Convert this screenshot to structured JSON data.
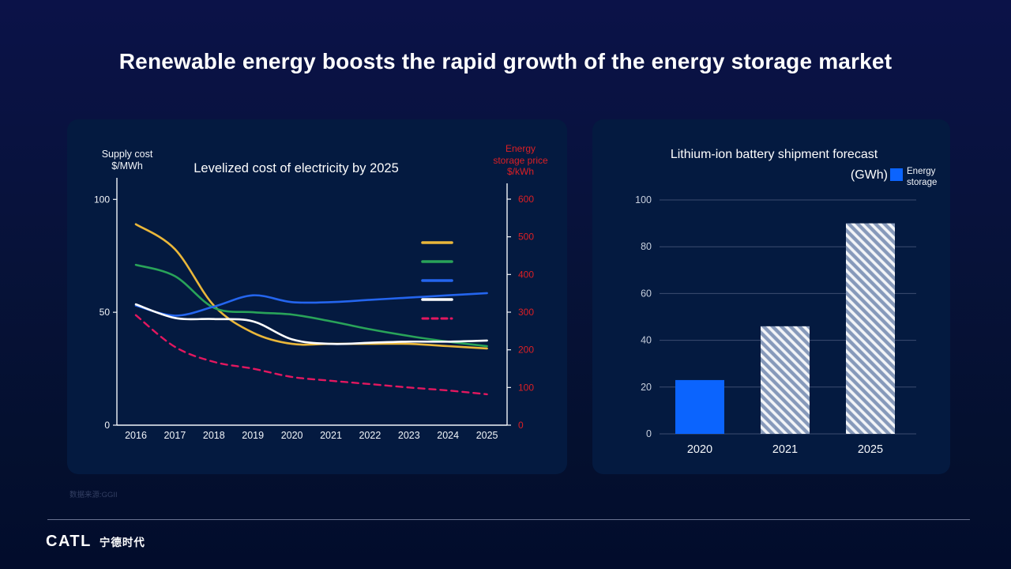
{
  "slide": {
    "title": "Renewable energy boosts the rapid growth of the energy storage market",
    "source_note": "数据来源:GGII",
    "logo_text": "CATL",
    "logo_cn": "宁德时代"
  },
  "chart_data": [
    {
      "type": "line",
      "title": "Levelized  cost of electricity by 2025",
      "x": [
        2016,
        2017,
        2018,
        2019,
        2020,
        2021,
        2022,
        2023,
        2024,
        2025
      ],
      "left_axis": {
        "label_line1": "Supply cost",
        "label_line2": "$/MWh",
        "ticks": [
          0,
          50,
          100
        ],
        "range": [
          0,
          100
        ],
        "color": "#f2f5f9"
      },
      "right_axis": {
        "label_line1": "Energy",
        "label_line2": "storage price",
        "label_line3": "$/kWh",
        "ticks": [
          0,
          100,
          200,
          300,
          400,
          500,
          600
        ],
        "range": [
          0,
          600
        ],
        "color": "#dd1f24"
      },
      "legend_position": "top-right-swatches-only",
      "grid": false,
      "series": [
        {
          "name": "yellow-line",
          "axis": "left",
          "color": "#eab73a",
          "dashed": false,
          "values": [
            89,
            78,
            53,
            41,
            36,
            36,
            36,
            36,
            35,
            34
          ]
        },
        {
          "name": "green-line",
          "axis": "left",
          "color": "#29a359",
          "dashed": false,
          "values": [
            71,
            66,
            52,
            50,
            49,
            46,
            42.5,
            39.5,
            37,
            35
          ]
        },
        {
          "name": "blue-line",
          "axis": "left",
          "color": "#2465ee",
          "dashed": false,
          "values": [
            53,
            48.5,
            52.5,
            57.5,
            54.5,
            54.5,
            55.5,
            56.5,
            57.5,
            58.5
          ]
        },
        {
          "name": "white-line",
          "axis": "left",
          "color": "#ffffff",
          "dashed": false,
          "values": [
            53.5,
            47.5,
            47,
            46,
            38,
            36,
            36.5,
            37,
            37,
            37.5
          ]
        },
        {
          "name": "red-dashed-line",
          "axis": "right",
          "color": "#e3175f",
          "dashed": true,
          "values": [
            292,
            208,
            168,
            150,
            128,
            118,
            109,
            100,
            92,
            82
          ]
        }
      ]
    },
    {
      "type": "bar",
      "title": "Lithium-ion battery shipment forecast",
      "subtitle": "(GWh)",
      "legend": {
        "line1": "Energy",
        "line2": "storage",
        "swatch_color": "#0b64fe"
      },
      "categories": [
        "2020",
        "2021",
        "2025"
      ],
      "values": [
        23,
        46,
        90
      ],
      "bar_styles": [
        "solid",
        "hatched",
        "hatched"
      ],
      "solid_color": "#0b64fe",
      "hatch_base_color": "#8699ba",
      "hatch_stripe_color": "#f3f5f8",
      "yticks": [
        0,
        20,
        40,
        60,
        80,
        100
      ],
      "ylim": [
        0,
        100
      ],
      "grid": true,
      "grid_color": "#3c4c70",
      "tick_label_color": "#c7cfdd"
    }
  ]
}
